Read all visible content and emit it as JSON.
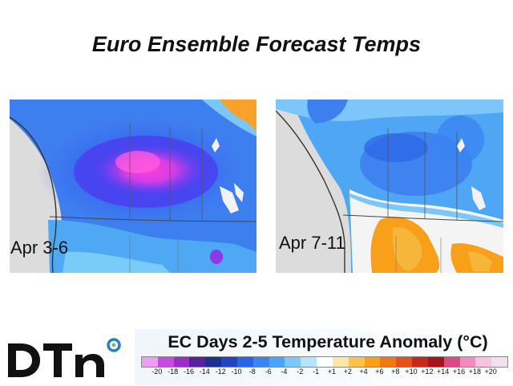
{
  "title": "Euro Ensemble Forecast Temps",
  "maps": {
    "left": {
      "label": "Apr 3-6",
      "anomaly_pattern": "strong cold anomaly (-8 to -16 °C) centered over western Canada"
    },
    "right": {
      "label": "Apr 7-11",
      "anomaly_pattern": "cold anomaly over Canada, warm anomaly (+2 to +6 °C) over northwestern US"
    }
  },
  "logo": {
    "text": "DTN",
    "accent_color": "#5bc2a8",
    "ring_color": "#2a7fc1"
  },
  "legend": {
    "title": "EC Days 2-5 Temperature Anomaly (°C)",
    "ticks": [
      "-20",
      "-18",
      "-16",
      "-14",
      "-12",
      "-10",
      "-8",
      "-6",
      "-4",
      "-2",
      "-1",
      "+1",
      "+2",
      "+4",
      "+6",
      "+8",
      "+10",
      "+12",
      "+14",
      "+16",
      "+18",
      "+20"
    ],
    "colors": [
      "#e9a0f0",
      "#c64ce0",
      "#9a2cc8",
      "#5a1f9c",
      "#1a2f8f",
      "#1f45c4",
      "#2a64e6",
      "#3a84f2",
      "#4aa4f8",
      "#7cc6fa",
      "#b7e3fb",
      "#ffffff",
      "#fde6a8",
      "#fdc34a",
      "#f9a01a",
      "#f07a12",
      "#e2521a",
      "#c8281c",
      "#a8141c",
      "#d94a86",
      "#f08cc0",
      "#f7c4e0",
      "#f0e0f0"
    ]
  }
}
